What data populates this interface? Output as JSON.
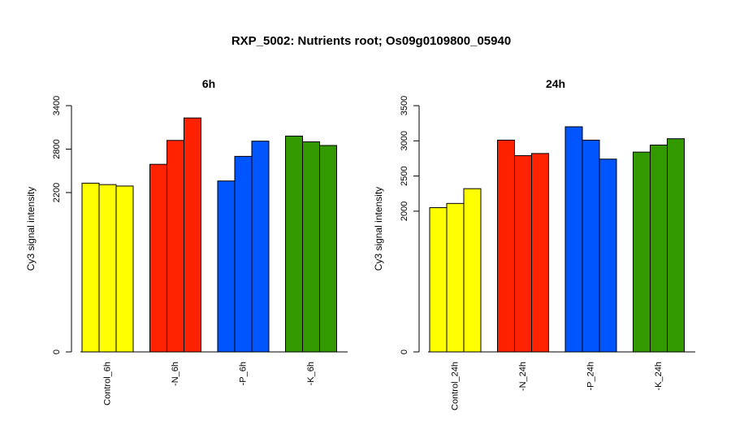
{
  "title": "RXP_5002: Nutrients root; Os09g0109800_05940",
  "colors": {
    "Control": "#FFFF00",
    "N": "#FF2200",
    "P": "#0055FF",
    "K": "#339900"
  },
  "chart_data": [
    {
      "type": "bar",
      "title": "6h",
      "ylabel": "Cy3 signal intensity",
      "categories": [
        "Control_6h",
        "-N_6h",
        "-P_6h",
        "-K_6h"
      ],
      "groups": [
        "Control",
        "N",
        "P",
        "K"
      ],
      "values": [
        [
          2330,
          2310,
          2290
        ],
        [
          2590,
          2920,
          3230
        ],
        [
          2360,
          2700,
          2910
        ],
        [
          2980,
          2900,
          2850
        ]
      ],
      "yticks": [
        0,
        2200,
        2800,
        3400
      ],
      "ylim": [
        0,
        3400
      ],
      "grid": false
    },
    {
      "type": "bar",
      "title": "24h",
      "ylabel": "Cy3 signal intensity",
      "categories": [
        "Control_24h",
        "-N_24h",
        "-P_24h",
        "-K_24h"
      ],
      "groups": [
        "Control",
        "N",
        "P",
        "K"
      ],
      "values": [
        [
          2050,
          2110,
          2320
        ],
        [
          3010,
          2790,
          2820
        ],
        [
          3200,
          3010,
          2740
        ],
        [
          2840,
          2940,
          3030
        ]
      ],
      "yticks": [
        0,
        2000,
        2500,
        3000,
        3500
      ],
      "ylim": [
        0,
        3500
      ],
      "grid": false
    }
  ]
}
